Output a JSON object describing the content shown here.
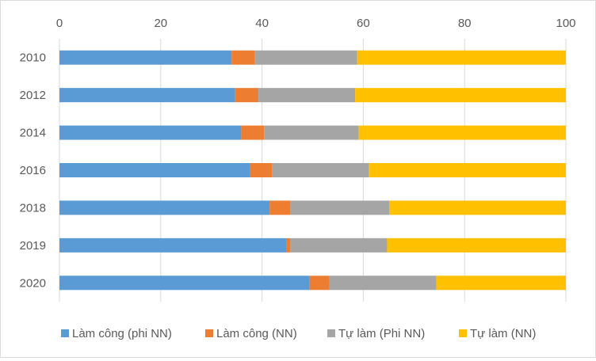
{
  "chart_data": {
    "type": "bar",
    "orientation": "horizontal",
    "stacked": true,
    "categories": [
      "2010",
      "2012",
      "2014",
      "2016",
      "2018",
      "2019",
      "2020"
    ],
    "series": [
      {
        "name": "Làm công (phi NN)",
        "color": "#5b9bd5",
        "values": [
          34.0,
          34.7,
          35.9,
          37.7,
          41.5,
          44.9,
          49.4
        ]
      },
      {
        "name": "Làm công (NN)",
        "color": "#ed7d31",
        "values": [
          4.6,
          4.6,
          4.5,
          4.3,
          4.1,
          0.7,
          3.9
        ]
      },
      {
        "name": "Tự làm (Phi NN)",
        "color": "#a5a5a5",
        "values": [
          20.2,
          19.1,
          18.7,
          19.1,
          19.5,
          19.1,
          21.1
        ]
      },
      {
        "name": "Tự làm (NN)",
        "color": "#ffc000",
        "values": [
          41.2,
          41.6,
          40.9,
          38.9,
          34.9,
          35.3,
          25.6
        ]
      }
    ],
    "x_ticks": [
      "0",
      "20",
      "40",
      "60",
      "80",
      "100"
    ],
    "xlim": [
      0,
      100
    ],
    "x_axis_position": "top",
    "gridlines": true,
    "legend_position": "bottom",
    "title": "",
    "xlabel": "",
    "ylabel": ""
  }
}
